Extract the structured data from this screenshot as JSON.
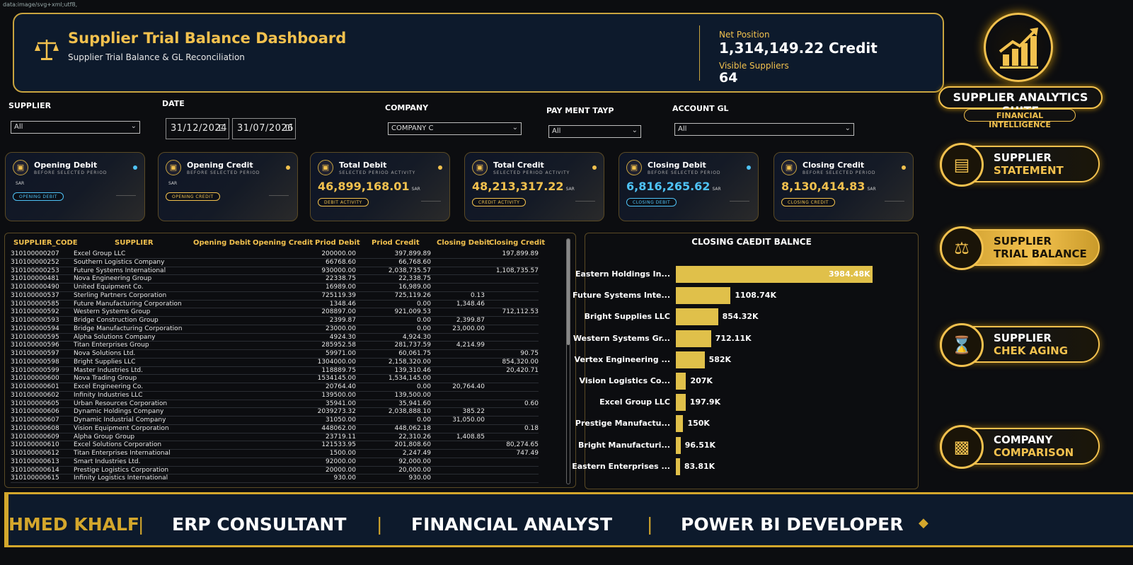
{
  "header": {
    "title": "Supplier Trial Balance Dashboard",
    "subtitle": "Supplier Trial Balance & GL Reconciliation",
    "net_position_label": "Net Position",
    "net_position_value": "1,314,149.22 Credit",
    "visible_suppliers_label": "Visible Suppliers",
    "visible_suppliers_value": "64"
  },
  "filters": {
    "supplier": {
      "label": "SUPPLIER",
      "value": "All"
    },
    "date": {
      "label": "DATE",
      "start": "31/12/2024",
      "end": "31/07/2026"
    },
    "company": {
      "label": "COMPANY",
      "value": "COMPANY C"
    },
    "payment": {
      "label": "PAY MENT TAYP",
      "value": "All"
    },
    "account": {
      "label": "ACCOUNT GL",
      "value": "All"
    }
  },
  "cards": [
    {
      "title": "Opening Debit",
      "sub": "BEFORE SELECTED PERIOD",
      "value": "",
      "currency": "SAR",
      "pill": "OPENING DEBIT",
      "dot": "#4fc3f7",
      "pill_color": "#4fc3f7",
      "value_color": "#ffffff"
    },
    {
      "title": "Opening Credit",
      "sub": "BEFORE SELECTED PERIOD",
      "value": "",
      "currency": "SAR",
      "pill": "OPENING CREDIT",
      "dot": "#f2c14e",
      "pill_color": "#f2c14e",
      "value_color": "#ffffff"
    },
    {
      "title": "Total Debit",
      "sub": "SELECTED PERIOD ACTIVITY",
      "value": "46,899,168.01",
      "currency": "SAR",
      "pill": "DEBIT ACTIVITY",
      "dot": "#f2c14e",
      "pill_color": "#f2c14e",
      "value_color": "#f2c14e"
    },
    {
      "title": "Total Credit",
      "sub": "SELECTED PERIOD ACTIVITY",
      "value": "48,213,317.22",
      "currency": "SAR",
      "pill": "CREDIT ACTIVITY",
      "dot": "#f2c14e",
      "pill_color": "#f2c14e",
      "value_color": "#f2c14e"
    },
    {
      "title": "Closing Debit",
      "sub": "BEFORE SELECTED PERIOD",
      "value": "6,816,265.62",
      "currency": "SAR",
      "pill": "CLOSING DEBIT",
      "dot": "#4fc3f7",
      "pill_color": "#4fc3f7",
      "value_color": "#4fc3f7"
    },
    {
      "title": "Closing Credit",
      "sub": "BEFORE SELECTED PERIOD",
      "value": "8,130,414.83",
      "currency": "SAR",
      "pill": "CLOSING CREDIT",
      "dot": "#f2c14e",
      "pill_color": "#f2c14e",
      "value_color": "#f2c14e"
    }
  ],
  "table": {
    "columns": [
      "SUPPLIER_CODE",
      "SUPPLIER",
      "Opening Debit",
      "Opening Credit",
      "Priod Debit",
      "Priod Credit",
      "Closing Debit",
      "Closing Credit"
    ],
    "rows": [
      [
        "310100000207",
        "Excel Group LLC",
        "",
        "",
        "200000.00",
        "397,899.89",
        "",
        "197,899.89"
      ],
      [
        "310100000252",
        "Southern Logistics Company",
        "",
        "",
        "66768.60",
        "66,768.60",
        "",
        ""
      ],
      [
        "310100000253",
        "Future Systems International",
        "",
        "",
        "930000.00",
        "2,038,735.57",
        "",
        "1,108,735.57"
      ],
      [
        "310100000481",
        "Nova Engineering Group",
        "",
        "",
        "22338.75",
        "22,338.75",
        "",
        ""
      ],
      [
        "310100000490",
        "United Equipment Co.",
        "",
        "",
        "16989.00",
        "16,989.00",
        "",
        ""
      ],
      [
        "310100000537",
        "Sterling Partners Corporation",
        "",
        "",
        "725119.39",
        "725,119.26",
        "0.13",
        ""
      ],
      [
        "310100000585",
        "Future Manufacturing Corporation",
        "",
        "",
        "1348.46",
        "0.00",
        "1,348.46",
        ""
      ],
      [
        "310100000592",
        "Western Systems Group",
        "",
        "",
        "208897.00",
        "921,009.53",
        "",
        "712,112.53"
      ],
      [
        "310100000593",
        "Bridge Construction Group",
        "",
        "",
        "2399.87",
        "0.00",
        "2,399.87",
        ""
      ],
      [
        "310100000594",
        "Bridge Manufacturing Corporation",
        "",
        "",
        "23000.00",
        "0.00",
        "23,000.00",
        ""
      ],
      [
        "310100000595",
        "Alpha Solutions Company",
        "",
        "",
        "4924.30",
        "4,924.30",
        "",
        ""
      ],
      [
        "310100000596",
        "Titan Enterprises Group",
        "",
        "",
        "285952.58",
        "281,737.59",
        "4,214.99",
        ""
      ],
      [
        "310100000597",
        "Nova Solutions Ltd.",
        "",
        "",
        "59971.00",
        "60,061.75",
        "",
        "90.75"
      ],
      [
        "310100000598",
        "Bright Supplies LLC",
        "",
        "",
        "1304000.00",
        "2,158,320.00",
        "",
        "854,320.00"
      ],
      [
        "310100000599",
        "Master Industries Ltd.",
        "",
        "",
        "118889.75",
        "139,310.46",
        "",
        "20,420.71"
      ],
      [
        "310100000600",
        "Nova Trading Group",
        "",
        "",
        "1534145.00",
        "1,534,145.00",
        "",
        ""
      ],
      [
        "310100000601",
        "Excel Engineering Co.",
        "",
        "",
        "20764.40",
        "0.00",
        "20,764.40",
        ""
      ],
      [
        "310100000602",
        "Infinity Industries LLC",
        "",
        "",
        "139500.00",
        "139,500.00",
        "",
        ""
      ],
      [
        "310100000605",
        "Urban Resources Corporation",
        "",
        "",
        "35941.00",
        "35,941.60",
        "",
        "0.60"
      ],
      [
        "310100000606",
        "Dynamic Holdings Company",
        "",
        "",
        "2039273.32",
        "2,038,888.10",
        "385.22",
        ""
      ],
      [
        "310100000607",
        "Dynamic Industrial Company",
        "",
        "",
        "31050.00",
        "0.00",
        "31,050.00",
        ""
      ],
      [
        "310100000608",
        "Vision Equipment Corporation",
        "",
        "",
        "448062.00",
        "448,062.18",
        "",
        "0.18"
      ],
      [
        "310100000609",
        "Alpha Group Group",
        "",
        "",
        "23719.11",
        "22,310.26",
        "1,408.85",
        ""
      ],
      [
        "310100000610",
        "Excel Solutions Corporation",
        "",
        "",
        "121533.95",
        "201,808.60",
        "",
        "80,274.65"
      ],
      [
        "310100000612",
        "Titan Enterprises International",
        "",
        "",
        "1500.00",
        "2,247.49",
        "",
        "747.49"
      ],
      [
        "310100000613",
        "Smart Industries Ltd.",
        "",
        "",
        "92000.00",
        "92,000.00",
        "",
        ""
      ],
      [
        "310100000614",
        "Prestige Logistics Corporation",
        "",
        "",
        "20000.00",
        "20,000.00",
        "",
        ""
      ],
      [
        "310100000615",
        "Infinity Logistics International",
        "",
        "",
        "930.00",
        "930.00",
        "",
        ""
      ]
    ]
  },
  "chart_data": {
    "type": "bar",
    "title": "CLOSING CAEDIT BALNCE",
    "orientation": "horizontal",
    "categories": [
      "Eastern Holdings In...",
      "Future Systems Inte...",
      "Bright Supplies LLC",
      "Western Systems Gr...",
      "Vertex Engineering ...",
      "Vision Logistics Co...",
      "Excel Group LLC",
      "Prestige Manufactu...",
      "Bright Manufacturi...",
      "Eastern Enterprises ..."
    ],
    "values": [
      3984.48,
      1108.74,
      854.32,
      712.11,
      582,
      207,
      197.9,
      150,
      96.51,
      83.81
    ],
    "value_labels": [
      "3984.48K",
      "1108.74K",
      "854.32K",
      "712.11K",
      "582K",
      "207K",
      "197.9K",
      "150K",
      "96.51K",
      "83.81K"
    ],
    "bar_color": "#e0c04a",
    "xlim": [
      0,
      3984.48
    ]
  },
  "nav": {
    "suite_title": "SUPPLIER ANALYTICS SUITE",
    "suite_subtitle": "FINANCIAL INTELLIGENCE",
    "buttons": [
      {
        "line1": "SUPPLIER",
        "line2": "STATEMENT",
        "icon": "document-icon"
      },
      {
        "line1": "SUPPLIER",
        "line2": "TRIAL BALANCE",
        "icon": "scale-icon"
      },
      {
        "line1": "SUPPLIER",
        "line2": "CHEK AGING",
        "icon": "hourglass-icon"
      },
      {
        "line1": "COMPANY",
        "line2": "COMPARISON",
        "icon": "bar-chart-icon"
      }
    ]
  },
  "ticker": {
    "items": [
      "HMED KHALF",
      "ERP CONSULTANT",
      "FINANCIAL ANALYST",
      "POWER BI DEVELOPER"
    ]
  },
  "colors": {
    "gold": "#f2c14e",
    "navy": "#0d1a2c",
    "cyan": "#4fc3f7"
  }
}
